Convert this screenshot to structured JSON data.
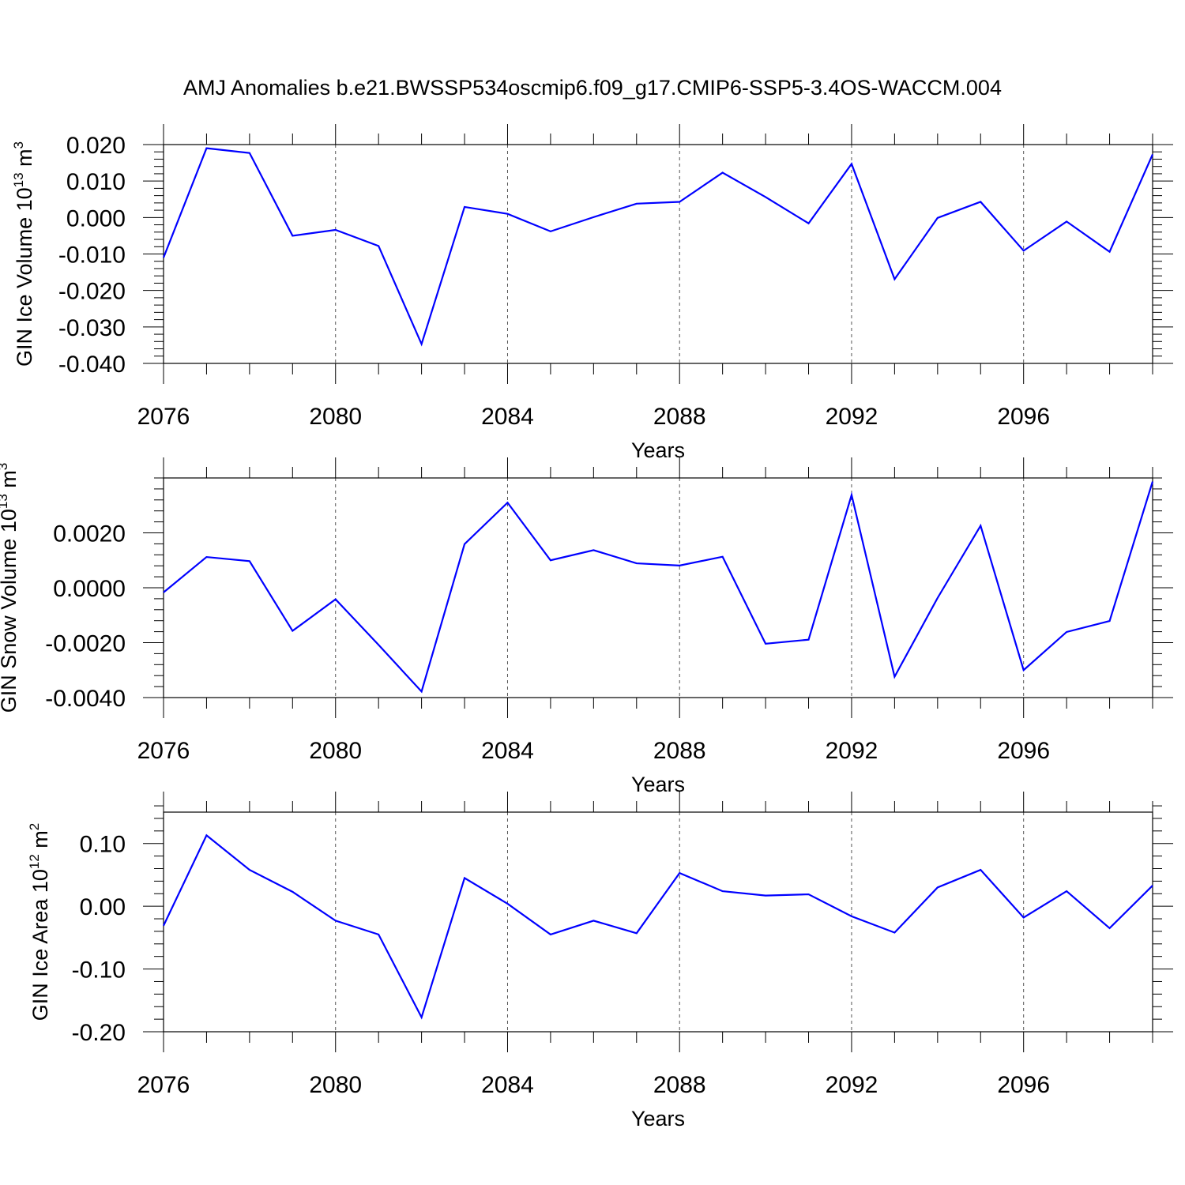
{
  "title": "AMJ Anomalies b.e21.BWSSP534oscmip6.f09_g17.CMIP6-SSP5-3.4OS-WACCM.004",
  "colors": {
    "line": "#0000ff",
    "axis": "#000000",
    "grid": "#555555",
    "background": "#ffffff"
  },
  "chart_data": [
    {
      "type": "line",
      "ylabel": "GIN Ice Volume 10",
      "ylabel_exp": "13",
      "ylabel_unit": " m",
      "ylabel_unit_exp": "3",
      "xlabel": "Years",
      "xlim": [
        2076,
        2099
      ],
      "ylim": [
        -0.04,
        0.02
      ],
      "yticks": [
        -0.04,
        -0.03,
        -0.02,
        -0.01,
        0.0,
        0.01,
        0.02
      ],
      "yticklabels": [
        "-0.040",
        "-0.030",
        "-0.020",
        "-0.010",
        "0.000",
        "0.010",
        "0.020"
      ],
      "yminor": 0.002,
      "xticks": [
        2076,
        2080,
        2084,
        2088,
        2092,
        2096
      ],
      "xticklabels": [
        "2076",
        "2080",
        "2084",
        "2088",
        "2092",
        "2096"
      ],
      "x": [
        2076,
        2077,
        2078,
        2079,
        2080,
        2081,
        2082,
        2083,
        2084,
        2085,
        2086,
        2087,
        2088,
        2089,
        2090,
        2091,
        2092,
        2093,
        2094,
        2095,
        2096,
        2097,
        2098,
        2099
      ],
      "values": [
        -0.011,
        0.019,
        0.0177,
        -0.005,
        -0.0034,
        -0.0078,
        -0.0347,
        0.0029,
        0.001,
        -0.0038,
        0.0001,
        0.0038,
        0.0043,
        0.0123,
        0.0056,
        -0.0016,
        0.0147,
        -0.0169,
        -0.0001,
        0.0043,
        -0.0091,
        -0.0011,
        -0.0094,
        0.0173
      ]
    },
    {
      "type": "line",
      "ylabel": "GIN Snow Volume 10",
      "ylabel_exp": "13",
      "ylabel_unit": " m",
      "ylabel_unit_exp": "3",
      "xlabel": "Years",
      "xlim": [
        2076,
        2099
      ],
      "ylim": [
        -0.004,
        0.004
      ],
      "yticks": [
        -0.004,
        -0.002,
        0.0,
        0.002
      ],
      "yticklabels": [
        "-0.0040",
        "-0.0020",
        "0.0000",
        "0.0020"
      ],
      "yminor": 0.0004,
      "xticks": [
        2076,
        2080,
        2084,
        2088,
        2092,
        2096
      ],
      "xticklabels": [
        "2076",
        "2080",
        "2084",
        "2088",
        "2092",
        "2096"
      ],
      "x": [
        2076,
        2077,
        2078,
        2079,
        2080,
        2081,
        2082,
        2083,
        2084,
        2085,
        2086,
        2087,
        2088,
        2089,
        2090,
        2091,
        2092,
        2093,
        2094,
        2095,
        2096,
        2097,
        2098,
        2099
      ],
      "values": [
        -0.00017,
        0.00112,
        0.00097,
        -0.00157,
        -0.00042,
        -0.00208,
        -0.00378,
        0.00159,
        0.0031,
        0.001,
        0.00137,
        0.00089,
        0.00081,
        0.00113,
        -0.00204,
        -0.00189,
        0.00338,
        -0.00324,
        -0.00037,
        0.00226,
        -0.003,
        -0.00161,
        -0.00121,
        0.00387
      ]
    },
    {
      "type": "line",
      "ylabel": "GIN Ice Area 10",
      "ylabel_exp": "12",
      "ylabel_unit": " m",
      "ylabel_unit_exp": "2",
      "xlabel": "Years",
      "xlim": [
        2076,
        2099
      ],
      "ylim": [
        -0.2,
        0.15
      ],
      "yticks": [
        -0.2,
        -0.1,
        0.0,
        0.1
      ],
      "yticklabels": [
        "-0.20",
        "-0.10",
        "0.00",
        "0.10"
      ],
      "yminor": 0.02,
      "xticks": [
        2076,
        2080,
        2084,
        2088,
        2092,
        2096
      ],
      "xticklabels": [
        "2076",
        "2080",
        "2084",
        "2088",
        "2092",
        "2096"
      ],
      "x": [
        2076,
        2077,
        2078,
        2079,
        2080,
        2081,
        2082,
        2083,
        2084,
        2085,
        2086,
        2087,
        2088,
        2089,
        2090,
        2091,
        2092,
        2093,
        2094,
        2095,
        2096,
        2097,
        2098,
        2099
      ],
      "values": [
        -0.031,
        0.113,
        0.058,
        0.023,
        -0.023,
        -0.045,
        -0.177,
        0.045,
        0.004,
        -0.045,
        -0.023,
        -0.043,
        0.053,
        0.024,
        0.017,
        0.019,
        -0.016,
        -0.042,
        0.03,
        0.058,
        -0.018,
        0.024,
        -0.035,
        0.033
      ]
    }
  ]
}
